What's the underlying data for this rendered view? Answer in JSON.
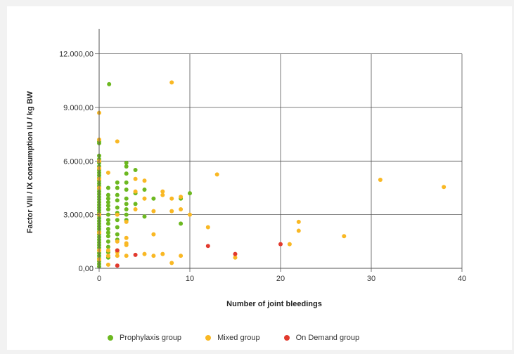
{
  "colors": {
    "prophylaxis": "#6cb820",
    "mixed": "#f9b824",
    "on_demand": "#e23a2e",
    "grid": "#555555"
  },
  "chart_data": {
    "type": "scatter",
    "xlabel": "Number of joint bleedings",
    "ylabel": "Factor VIII / IX consumption IU / kg BW",
    "xlim": [
      0,
      40
    ],
    "ylim": [
      0,
      13400
    ],
    "x_ticks": [
      0,
      10,
      20,
      30,
      40
    ],
    "x_tick_labels": [
      "0",
      "10",
      "20",
      "30",
      "40"
    ],
    "y_ticks": [
      0,
      3000,
      6000,
      9000,
      12000
    ],
    "y_tick_labels": [
      "0,00",
      "3.000,00",
      "6.000,00",
      "9.000,00",
      "12.000,00"
    ],
    "grid": true,
    "legend_position": "bottom",
    "series": [
      {
        "name": "Prophylaxis group",
        "color": "#6cb820",
        "points": [
          [
            0,
            7100
          ],
          [
            0,
            7000
          ],
          [
            0,
            6300
          ],
          [
            0,
            6100
          ],
          [
            0,
            5900
          ],
          [
            0,
            5700
          ],
          [
            0,
            5500
          ],
          [
            0,
            5350
          ],
          [
            0,
            5200
          ],
          [
            0,
            5050
          ],
          [
            0,
            4900
          ],
          [
            0,
            4750
          ],
          [
            0,
            4600
          ],
          [
            0,
            4450
          ],
          [
            0,
            4300
          ],
          [
            0,
            4150
          ],
          [
            0,
            4000
          ],
          [
            0,
            3850
          ],
          [
            0,
            3700
          ],
          [
            0,
            3550
          ],
          [
            0,
            3400
          ],
          [
            0,
            3250
          ],
          [
            0,
            3100
          ],
          [
            0,
            2950
          ],
          [
            0,
            2800
          ],
          [
            0,
            2650
          ],
          [
            0,
            2500
          ],
          [
            0,
            2350
          ],
          [
            0,
            2200
          ],
          [
            0,
            2050
          ],
          [
            0,
            1900
          ],
          [
            0,
            1750
          ],
          [
            0,
            1600
          ],
          [
            0,
            1450
          ],
          [
            0,
            1300
          ],
          [
            0,
            1150
          ],
          [
            0,
            1000
          ],
          [
            0,
            850
          ],
          [
            0,
            700
          ],
          [
            0,
            550
          ],
          [
            0,
            400
          ],
          [
            0,
            250
          ],
          [
            0,
            100
          ],
          [
            1.1,
            10300
          ],
          [
            1,
            4500
          ],
          [
            1,
            4100
          ],
          [
            1,
            3900
          ],
          [
            1,
            3700
          ],
          [
            1,
            3500
          ],
          [
            1,
            3300
          ],
          [
            1,
            3000
          ],
          [
            1,
            2700
          ],
          [
            1,
            2500
          ],
          [
            1,
            2200
          ],
          [
            1,
            2000
          ],
          [
            1,
            1800
          ],
          [
            1,
            1500
          ],
          [
            1,
            1200
          ],
          [
            1,
            900
          ],
          [
            1,
            600
          ],
          [
            2,
            4800
          ],
          [
            2,
            4500
          ],
          [
            2,
            4100
          ],
          [
            2,
            3800
          ],
          [
            2,
            3400
          ],
          [
            2,
            3100
          ],
          [
            2,
            2700
          ],
          [
            2,
            2300
          ],
          [
            2,
            1900
          ],
          [
            2,
            1600
          ],
          [
            2,
            1000
          ],
          [
            3,
            5900
          ],
          [
            3,
            5700
          ],
          [
            3,
            5300
          ],
          [
            3,
            4800
          ],
          [
            3,
            4400
          ],
          [
            3,
            3900
          ],
          [
            3,
            3600
          ],
          [
            3,
            3300
          ],
          [
            3,
            3000
          ],
          [
            3,
            2700
          ],
          [
            4,
            5500
          ],
          [
            4,
            4200
          ],
          [
            4,
            3600
          ],
          [
            5,
            4400
          ],
          [
            5,
            2900
          ],
          [
            6,
            3900
          ],
          [
            9,
            3900
          ],
          [
            9,
            2500
          ],
          [
            10,
            4200
          ]
        ]
      },
      {
        "name": "Mixed group",
        "color": "#f9b824",
        "points": [
          [
            0,
            8700
          ],
          [
            0,
            7200
          ],
          [
            0,
            6000
          ],
          [
            0,
            5600
          ],
          [
            0,
            5000
          ],
          [
            0,
            4500
          ],
          [
            0,
            3000
          ],
          [
            0,
            2000
          ],
          [
            0,
            1000
          ],
          [
            0,
            500
          ],
          [
            1,
            5350
          ],
          [
            1,
            1000
          ],
          [
            1,
            700
          ],
          [
            1,
            200
          ],
          [
            2,
            7100
          ],
          [
            2,
            3000
          ],
          [
            2,
            1500
          ],
          [
            2,
            900
          ],
          [
            2,
            700
          ],
          [
            3,
            2600
          ],
          [
            3,
            1700
          ],
          [
            3,
            1400
          ],
          [
            3,
            1300
          ],
          [
            3,
            700
          ],
          [
            4,
            5000
          ],
          [
            4,
            4300
          ],
          [
            4,
            3300
          ],
          [
            5,
            4900
          ],
          [
            5,
            3900
          ],
          [
            5,
            800
          ],
          [
            6,
            3200
          ],
          [
            6,
            1900
          ],
          [
            6,
            700
          ],
          [
            7,
            4300
          ],
          [
            7,
            4100
          ],
          [
            7,
            800
          ],
          [
            8,
            10400
          ],
          [
            8,
            3900
          ],
          [
            8,
            3200
          ],
          [
            8,
            300
          ],
          [
            9,
            4000
          ],
          [
            9,
            3300
          ],
          [
            9,
            700
          ],
          [
            10,
            3000
          ],
          [
            12,
            2300
          ],
          [
            13,
            5250
          ],
          [
            15,
            600
          ],
          [
            21,
            1350
          ],
          [
            22,
            2600
          ],
          [
            22,
            2100
          ],
          [
            27,
            1800
          ],
          [
            31,
            4950
          ],
          [
            38,
            4550
          ]
        ]
      },
      {
        "name": "On Demand group",
        "color": "#e23a2e",
        "points": [
          [
            2,
            1000
          ],
          [
            2,
            150
          ],
          [
            4,
            750
          ],
          [
            12,
            1250
          ],
          [
            15,
            800
          ],
          [
            20,
            1350
          ]
        ]
      }
    ]
  }
}
